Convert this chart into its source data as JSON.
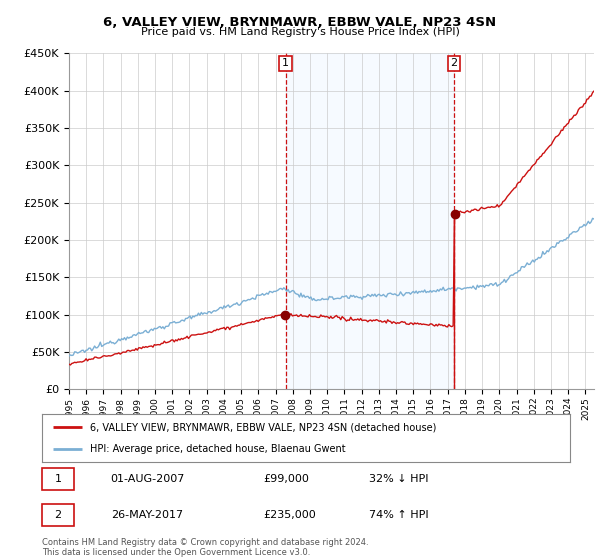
{
  "title": "6, VALLEY VIEW, BRYNMAWR, EBBW VALE, NP23 4SN",
  "subtitle": "Price paid vs. HM Land Registry's House Price Index (HPI)",
  "legend_line1": "6, VALLEY VIEW, BRYNMAWR, EBBW VALE, NP23 4SN (detached house)",
  "legend_line2": "HPI: Average price, detached house, Blaenau Gwent",
  "annotation1_date": "01-AUG-2007",
  "annotation1_price": "£99,000",
  "annotation1_hpi": "32% ↓ HPI",
  "annotation2_date": "26-MAY-2017",
  "annotation2_price": "£235,000",
  "annotation2_hpi": "74% ↑ HPI",
  "footer": "Contains HM Land Registry data © Crown copyright and database right 2024.\nThis data is licensed under the Open Government Licence v3.0.",
  "hpi_color": "#7bafd4",
  "price_color": "#cc1111",
  "annotation_color": "#cc1111",
  "shade_color": "#ddeeff",
  "ylim_min": 0,
  "ylim_max": 450000,
  "xlim_min": 1995,
  "xlim_max": 2025.5,
  "background_color": "#ffffff",
  "grid_color": "#cccccc",
  "sale1_year": 2007.583,
  "sale2_year": 2017.375,
  "sale1_price": 99000,
  "sale2_price": 235000
}
